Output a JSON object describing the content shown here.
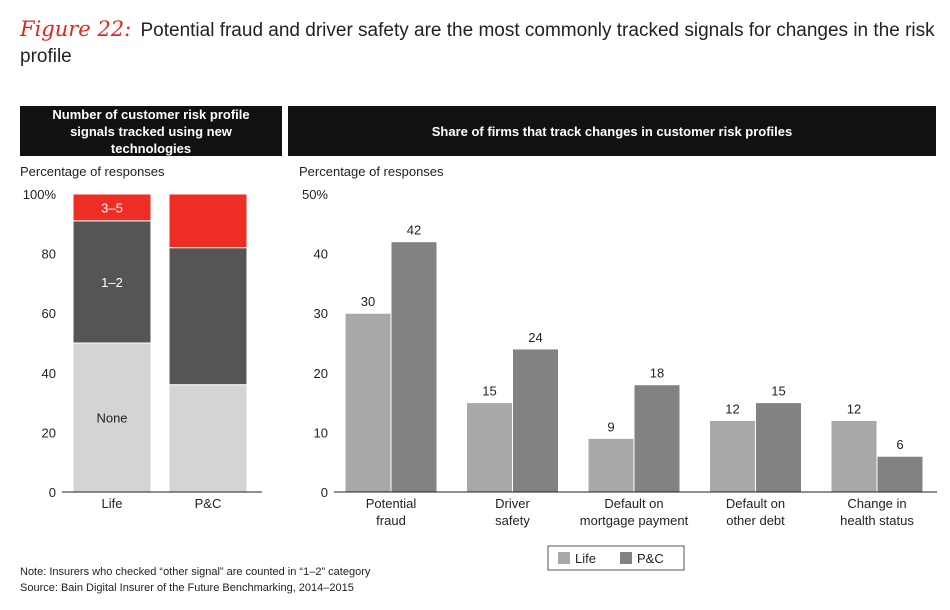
{
  "figure": {
    "label": "Figure 22:",
    "title": "Potential fraud and driver safety are the most commonly tracked signals for changes in the risk profile"
  },
  "panels": {
    "left_header": "Number of customer risk profile signals tracked using new technologies",
    "right_header": "Share of firms that track changes in customer risk profiles"
  },
  "colors": {
    "none": "#d4d4d6",
    "one_two": "#555557",
    "three_five": "#ee2e24",
    "life": "#a8a8aa",
    "pc": "#828284"
  },
  "chart_data": [
    {
      "type": "bar",
      "stacked": true,
      "title": "Number of customer risk profile signals tracked using new technologies",
      "ylabel": "Percentage of responses",
      "ylim": [
        0,
        100
      ],
      "yticks": [
        "0",
        "20",
        "40",
        "60",
        "80",
        "100%"
      ],
      "categories": [
        "Life",
        "P&C"
      ],
      "series": [
        {
          "name": "None",
          "values": [
            50,
            36
          ],
          "color_key": "none"
        },
        {
          "name": "1–2",
          "values": [
            41,
            46
          ],
          "color_key": "one_two"
        },
        {
          "name": "3–5",
          "values": [
            9,
            18
          ],
          "color_key": "three_five"
        }
      ]
    },
    {
      "type": "bar",
      "title": "Share of firms that track changes in customer risk profiles",
      "ylabel": "Percentage of responses",
      "ylim": [
        0,
        50
      ],
      "yticks": [
        "0",
        "10",
        "20",
        "30",
        "40",
        "50%"
      ],
      "categories": [
        [
          "Potential",
          "fraud"
        ],
        [
          "Driver",
          "safety"
        ],
        [
          "Default on",
          "mortgage payment"
        ],
        [
          "Default on",
          "other debt"
        ],
        [
          "Change in",
          "health status"
        ]
      ],
      "series": [
        {
          "name": "Life",
          "values": [
            30,
            15,
            9,
            12,
            12
          ],
          "color_key": "life"
        },
        {
          "name": "P&C",
          "values": [
            42,
            24,
            18,
            15,
            6
          ],
          "color_key": "pc"
        }
      ],
      "legend": [
        "Life",
        "P&C"
      ]
    }
  ],
  "notes": {
    "note": "Note: Insurers who checked “other signal” are counted in “1–2” category",
    "source": "Source: Bain Digital Insurer of the Future Benchmarking, 2014–2015"
  }
}
